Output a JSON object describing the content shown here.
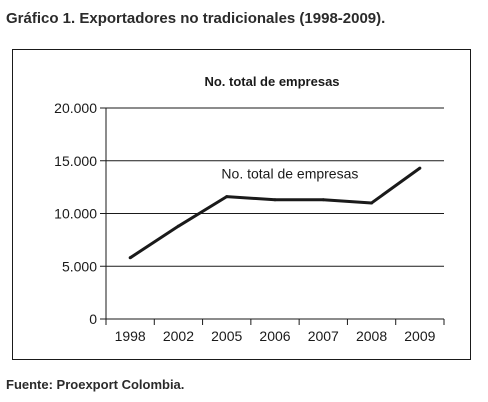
{
  "figure_title": "Gráfico 1. Exportadores no tradicionales (1998-2009).",
  "source": "Fuente: Proexport Colombia.",
  "chart_data": {
    "type": "line",
    "title": "No. total de empresas",
    "xlabel": "",
    "ylabel": "",
    "categories": [
      "1998",
      "2002",
      "2005",
      "2006",
      "2007",
      "2008",
      "2009"
    ],
    "series": [
      {
        "name": "No. total de empresas",
        "values": [
          5800,
          8800,
          11600,
          11300,
          11300,
          11000,
          14300
        ]
      }
    ],
    "ylim": [
      0,
      20000
    ],
    "yticks": [
      0,
      5000,
      10000,
      15000,
      20000
    ],
    "ytick_labels": [
      "0",
      "5.000",
      "10.000",
      "15.000",
      "20.000"
    ],
    "grid": "horizontal",
    "legend": "inline label above line",
    "line_color": "#1a1a1a"
  }
}
